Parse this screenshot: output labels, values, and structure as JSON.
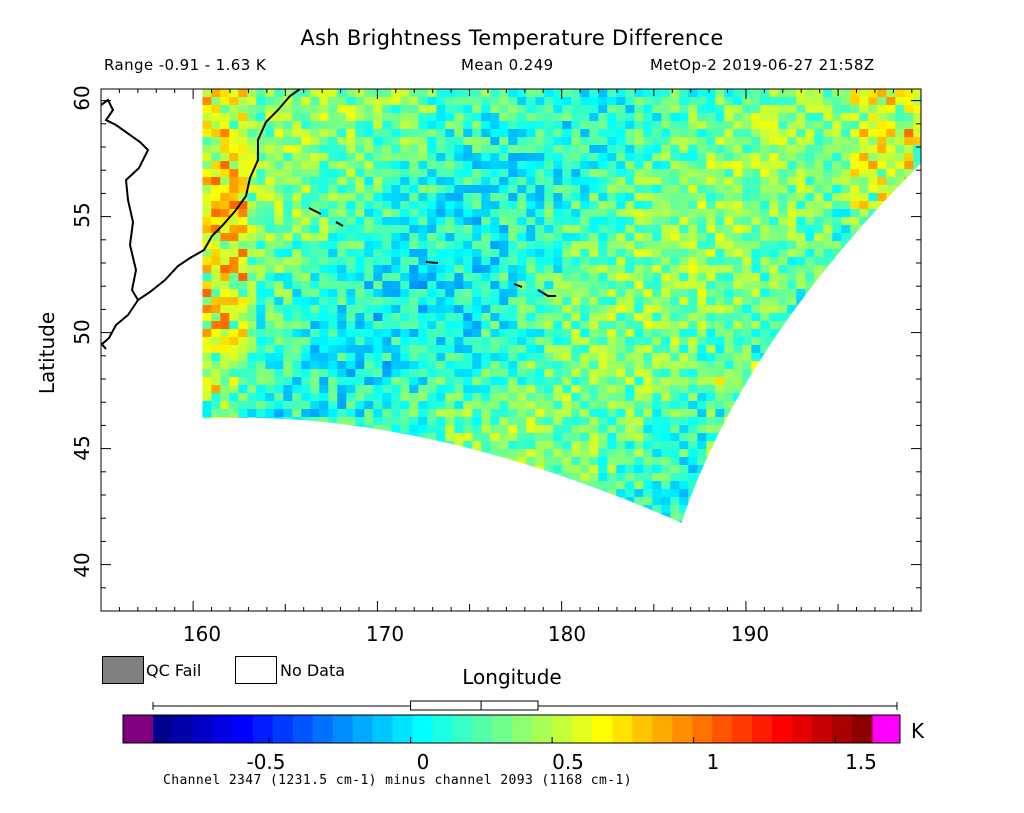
{
  "chart_data": {
    "type": "heatmap",
    "title": "Ash Brightness Temperature Difference",
    "subtitle_left": "Range -0.91 - 1.63 K",
    "subtitle_center": "Mean 0.249",
    "subtitle_right": "MetOp-2 2019-06-27 21:58Z",
    "xlabel": "Longitude",
    "ylabel": "Latitude",
    "xlim": [
      155,
      199.5
    ],
    "ylim": [
      38,
      60.5
    ],
    "xticks": [
      "160",
      "170",
      "180",
      "190"
    ],
    "xtick_values": [
      160,
      170,
      180,
      190
    ],
    "yticks": [
      "40",
      "45",
      "50",
      "55",
      "60"
    ],
    "ytick_values": [
      40,
      45,
      50,
      55,
      60
    ],
    "data_range": {
      "min": -0.91,
      "max": 1.63
    },
    "mean": 0.249,
    "swath": {
      "corners_lonlat": [
        [
          160.5,
          60.5
        ],
        [
          199.5,
          60.5
        ],
        [
          199.5,
          57.3
        ],
        [
          186.5,
          41.8
        ],
        [
          160.5,
          46.3
        ]
      ],
      "note": "scanned pixel swath; values mostly 0 to 0.6 K with warm edges"
    },
    "colorbar": {
      "vmin": -0.91,
      "vmax": 1.63,
      "unit": "K",
      "ticks": [
        "-0.5",
        "0",
        "0.5",
        "1",
        "1.5"
      ],
      "tick_values": [
        -0.5,
        0,
        0.5,
        1,
        1.5
      ],
      "under_color": "#800080",
      "over_color": "#ff00ff",
      "mean_marker": 0.249,
      "colormap": "jet"
    },
    "legend": [
      {
        "label": "QC Fail",
        "color": "#808080"
      },
      {
        "label": "No Data",
        "color": "#ffffff"
      }
    ],
    "footnote": "Channel 2347 (1231.5 cm-1) minus channel 2093 (1168 cm-1)"
  }
}
